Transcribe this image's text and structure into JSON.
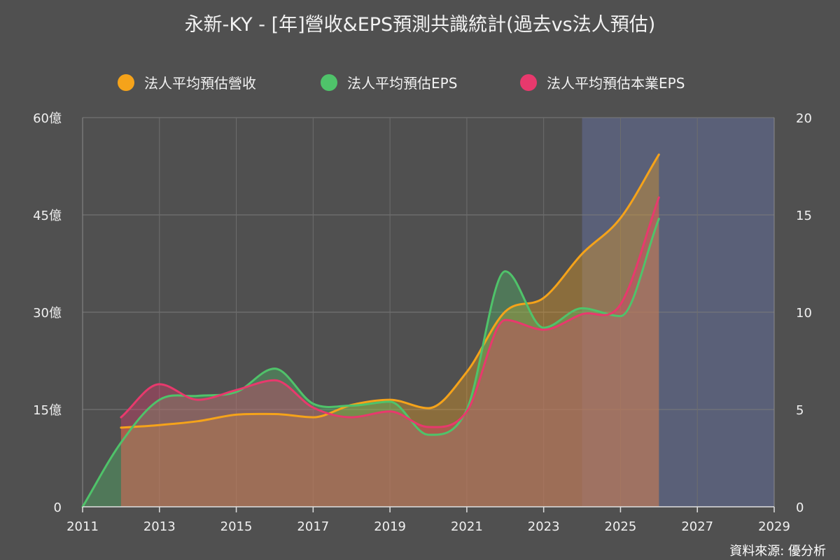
{
  "chart_data": {
    "type": "line",
    "title": "永新-KY - [年]營收&EPS預測共識統計(過去vs法人預估)",
    "source": "資料來源: 優分析",
    "x_ticks": [
      "2011",
      "2013",
      "2015",
      "2017",
      "2019",
      "2021",
      "2023",
      "2025",
      "2027",
      "2029"
    ],
    "xlim": [
      2011,
      2029
    ],
    "y_left_ticks": [
      "0",
      "15億",
      "30億",
      "45億",
      "60億"
    ],
    "y_left_lim": [
      0,
      60
    ],
    "y_left_unit": "億",
    "y_right_ticks": [
      "0",
      "5",
      "10",
      "15",
      "20"
    ],
    "y_right_lim": [
      0,
      20
    ],
    "forecast_shade": {
      "from": 2024,
      "to": 2029,
      "color": "#5a6078"
    },
    "grid": true,
    "legend_position": "top-center",
    "series": [
      {
        "name": "法人平均預估營收",
        "axis": "left",
        "color": "#f5a31a",
        "fill": "rgba(245,163,26,0.35)",
        "x": [
          2012,
          2013,
          2014,
          2015,
          2016,
          2017,
          2018,
          2019,
          2020,
          2021,
          2022,
          2023,
          2024,
          2025,
          2026
        ],
        "values": [
          12.2,
          12.6,
          13.2,
          14.2,
          14.3,
          13.8,
          15.7,
          16.5,
          15.2,
          20.8,
          30.1,
          32.2,
          39.0,
          44.5,
          54.3
        ]
      },
      {
        "name": "法人平均預估EPS",
        "axis": "right",
        "color": "#4fc36a",
        "fill": "rgba(79,195,106,0.35)",
        "x": [
          2011,
          2012,
          2013,
          2014,
          2015,
          2016,
          2017,
          2018,
          2019,
          2020,
          2021,
          2022,
          2023,
          2024,
          2025,
          2026
        ],
        "values": [
          0,
          3.3,
          5.5,
          5.7,
          5.9,
          7.1,
          5.3,
          5.2,
          5.4,
          3.7,
          5.0,
          12.1,
          9.2,
          10.2,
          9.8,
          14.8
        ]
      },
      {
        "name": "法人平均預估本業EPS",
        "axis": "right",
        "color": "#e8396d",
        "fill": "rgba(232,57,109,0.35)",
        "x": [
          2012,
          2013,
          2014,
          2015,
          2016,
          2017,
          2018,
          2019,
          2020,
          2021,
          2022,
          2023,
          2024,
          2025,
          2026
        ],
        "values": [
          4.6,
          6.3,
          5.5,
          6.0,
          6.5,
          5.1,
          4.6,
          4.9,
          4.1,
          4.9,
          9.6,
          9.1,
          9.9,
          10.4,
          15.9
        ]
      }
    ]
  }
}
